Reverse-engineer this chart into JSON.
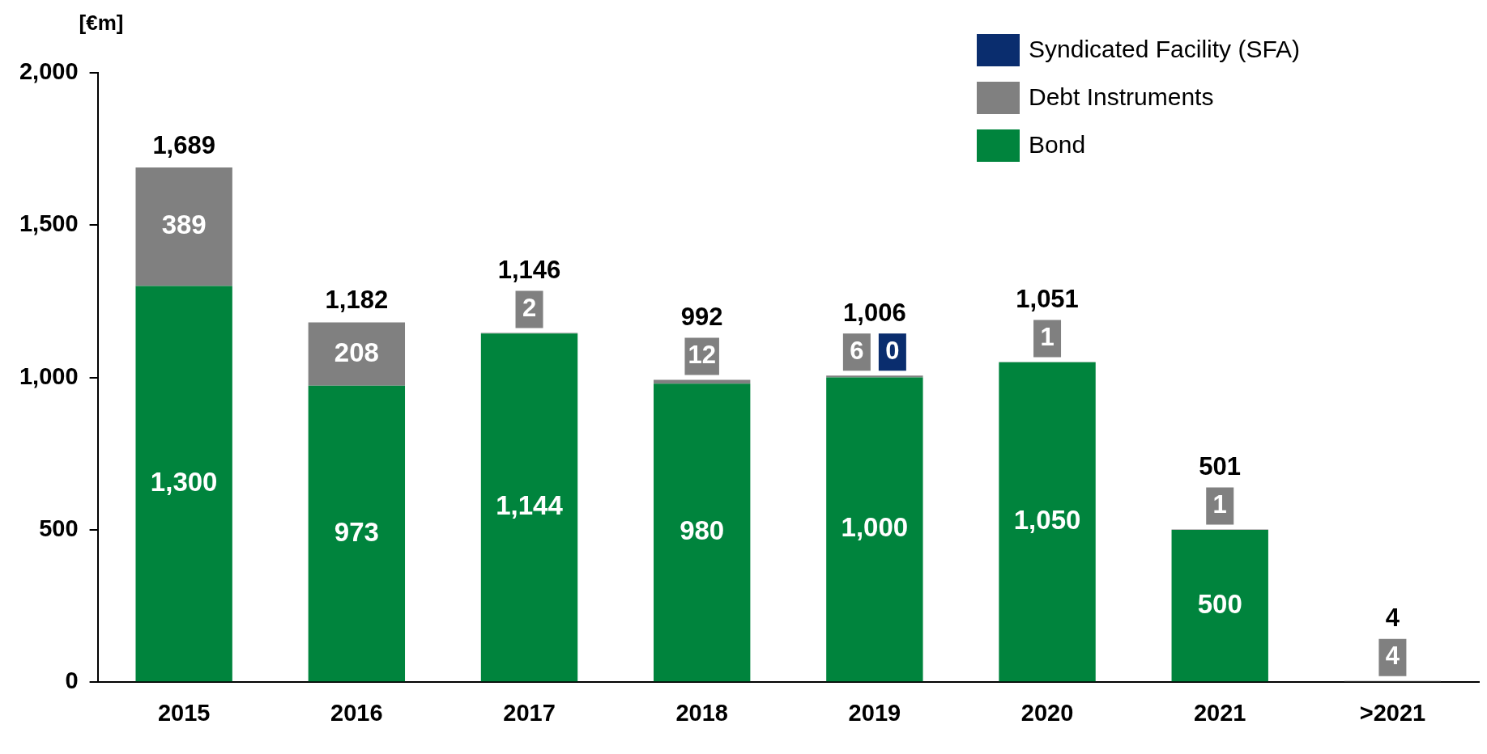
{
  "chart_data": {
    "type": "bar",
    "stacked": true,
    "ylabel": "[€m]",
    "categories": [
      "2015",
      "2016",
      "2017",
      "2018",
      "2019",
      "2020",
      "2021",
      ">2021"
    ],
    "series": [
      {
        "name": "Bond",
        "color": "#00843d",
        "values": [
          1300,
          973,
          1144,
          980,
          1000,
          1050,
          500,
          0
        ],
        "value_labels": [
          "1,300",
          "973",
          "1,144",
          "980",
          "1,000",
          "1,050",
          "500",
          null
        ]
      },
      {
        "name": "Debt Instruments",
        "color": "#808080",
        "values": [
          389,
          208,
          2,
          12,
          6,
          1,
          1,
          4
        ],
        "value_labels": [
          "389",
          "208",
          "2",
          "12",
          "6",
          "1",
          "1",
          "4"
        ]
      },
      {
        "name": "Syndicated Facility (SFA)",
        "color": "#0a2d6e",
        "values": [
          0,
          0,
          0,
          0,
          0,
          0,
          0,
          0
        ],
        "value_labels": [
          null,
          null,
          null,
          null,
          "0",
          null,
          null,
          null
        ]
      }
    ],
    "totals": [
      "1,689",
      "1,182",
      "1,146",
      "992",
      "1,006",
      "1,051",
      "501",
      "4"
    ],
    "ylim": [
      0,
      2000
    ],
    "yticks": [
      0,
      500,
      {
        "value": 1000,
        "label": "1,000"
      },
      {
        "value": 1500,
        "label": "1,500"
      },
      {
        "value": 2000,
        "label": "2,000"
      }
    ],
    "grid": false,
    "legend": "top right"
  }
}
